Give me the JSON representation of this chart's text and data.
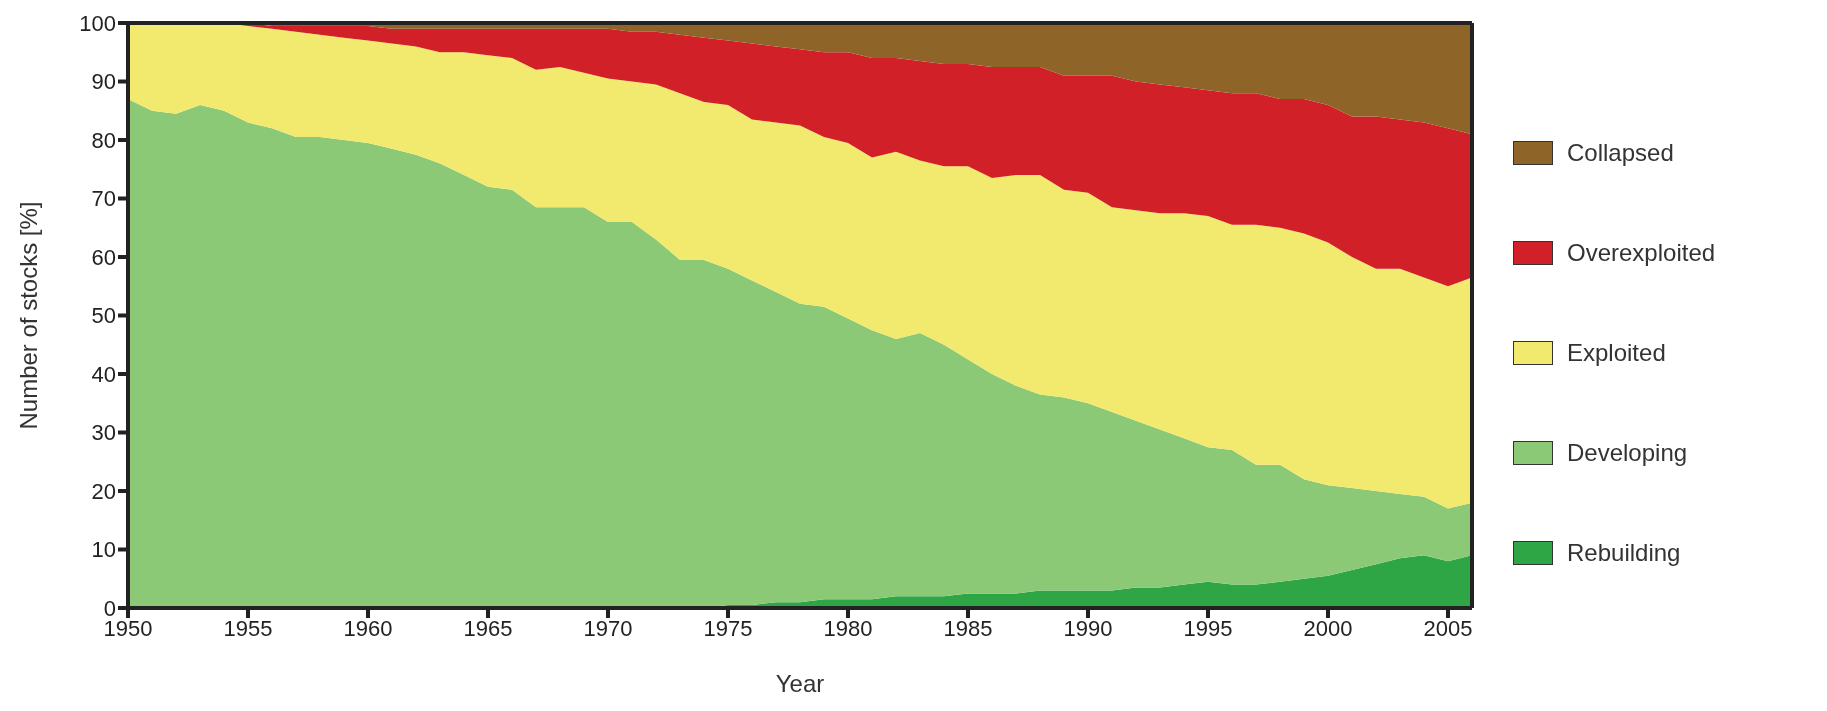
{
  "chart_data": {
    "type": "area",
    "stacked": true,
    "xlabel": "Year",
    "ylabel": "Number of stocks [%]",
    "legend": "right",
    "x": [
      1950,
      1951,
      1952,
      1953,
      1954,
      1955,
      1956,
      1957,
      1958,
      1959,
      1960,
      1961,
      1962,
      1963,
      1964,
      1965,
      1966,
      1967,
      1968,
      1969,
      1970,
      1971,
      1972,
      1973,
      1974,
      1975,
      1976,
      1977,
      1978,
      1979,
      1980,
      1981,
      1982,
      1983,
      1984,
      1985,
      1986,
      1987,
      1988,
      1989,
      1990,
      1991,
      1992,
      1993,
      1994,
      1995,
      1996,
      1997,
      1998,
      1999,
      2000,
      2001,
      2002,
      2003,
      2004,
      2005,
      2006
    ],
    "xlim": [
      1950,
      2006
    ],
    "xticks": [
      1950,
      1955,
      1960,
      1965,
      1970,
      1975,
      1980,
      1985,
      1990,
      1995,
      2000,
      2005
    ],
    "ylim": [
      0,
      100
    ],
    "yticks": [
      0,
      10,
      20,
      30,
      40,
      50,
      60,
      70,
      80,
      90,
      100
    ],
    "series": [
      {
        "name": "Rebuilding",
        "color": "#2ea646",
        "values": [
          0,
          0,
          0,
          0,
          0,
          0,
          0,
          0,
          0,
          0,
          0,
          0,
          0,
          0,
          0,
          0,
          0,
          0,
          0,
          0,
          0,
          0,
          0,
          0,
          0,
          0.5,
          0.5,
          1,
          1,
          1.5,
          1.5,
          1.5,
          2,
          2,
          2,
          2.5,
          2.5,
          2.5,
          3,
          3,
          3,
          3,
          3.5,
          3.5,
          4,
          4.5,
          4,
          4,
          4.5,
          5,
          5.5,
          6.5,
          7.5,
          8.5,
          9,
          8,
          9
        ]
      },
      {
        "name": "Developing",
        "color": "#8cc976",
        "values": [
          87,
          85,
          84.5,
          86,
          85,
          83,
          82,
          80.5,
          80.5,
          80,
          79.5,
          78.5,
          77.5,
          76,
          74,
          72,
          71.5,
          68.5,
          68.5,
          68.5,
          66,
          66,
          63,
          59.5,
          59.5,
          57.5,
          55.5,
          53,
          51,
          50,
          48,
          46,
          44,
          45,
          43,
          40,
          37.5,
          35.5,
          33.5,
          33,
          32,
          30.5,
          28.5,
          27,
          25,
          23,
          23,
          20.5,
          20,
          17,
          15.5,
          14,
          12.5,
          11,
          10,
          9,
          9
        ]
      },
      {
        "name": "Exploited",
        "color": "#f2ea6e",
        "values": [
          13,
          15,
          15.5,
          14,
          15,
          16.5,
          17,
          18,
          17.5,
          17.5,
          17.5,
          18,
          18.5,
          19,
          21,
          22.5,
          22.5,
          23.5,
          24,
          23,
          24.5,
          24,
          26.5,
          28.5,
          27,
          28,
          27.5,
          29,
          30.5,
          29,
          30,
          29.5,
          32,
          29.5,
          30.5,
          33,
          33.5,
          36,
          37.5,
          35.5,
          36,
          35,
          36,
          37,
          38.5,
          39.5,
          38.5,
          41,
          40.5,
          42,
          41.5,
          39.5,
          38,
          38.5,
          37.5,
          38,
          38.5
        ]
      },
      {
        "name": "Overexploited",
        "color": "#d12027",
        "values": [
          0,
          0,
          0,
          0,
          0,
          0.5,
          0.5,
          1,
          1.5,
          2,
          2.5,
          2.5,
          3,
          4,
          4,
          4.5,
          5,
          7,
          6.5,
          7.5,
          8.5,
          8.5,
          9,
          10,
          11,
          11,
          13,
          13,
          13,
          14.5,
          15.5,
          17,
          16,
          17,
          17.5,
          17.5,
          19,
          18.5,
          18.5,
          19.5,
          20,
          22.5,
          22,
          22,
          21.5,
          21.5,
          22.5,
          22.5,
          22,
          23,
          23.5,
          24,
          26,
          25.5,
          26.5,
          27,
          24.5
        ]
      },
      {
        "name": "Collapsed",
        "color": "#8f6428",
        "values": [
          0,
          0,
          0,
          0,
          0,
          0,
          0.5,
          0.5,
          0.5,
          0.5,
          0.5,
          1,
          1,
          1,
          1,
          1,
          1,
          1,
          1,
          1,
          1,
          1.5,
          1.5,
          2,
          2.5,
          3,
          3.5,
          4,
          4.5,
          5,
          5,
          6,
          6,
          6.5,
          7,
          7,
          7.5,
          7.5,
          7.5,
          9,
          9,
          9,
          10,
          10.5,
          11,
          11.5,
          12,
          12,
          13,
          13,
          14,
          16,
          16,
          16.5,
          17,
          18,
          19
        ]
      }
    ]
  }
}
